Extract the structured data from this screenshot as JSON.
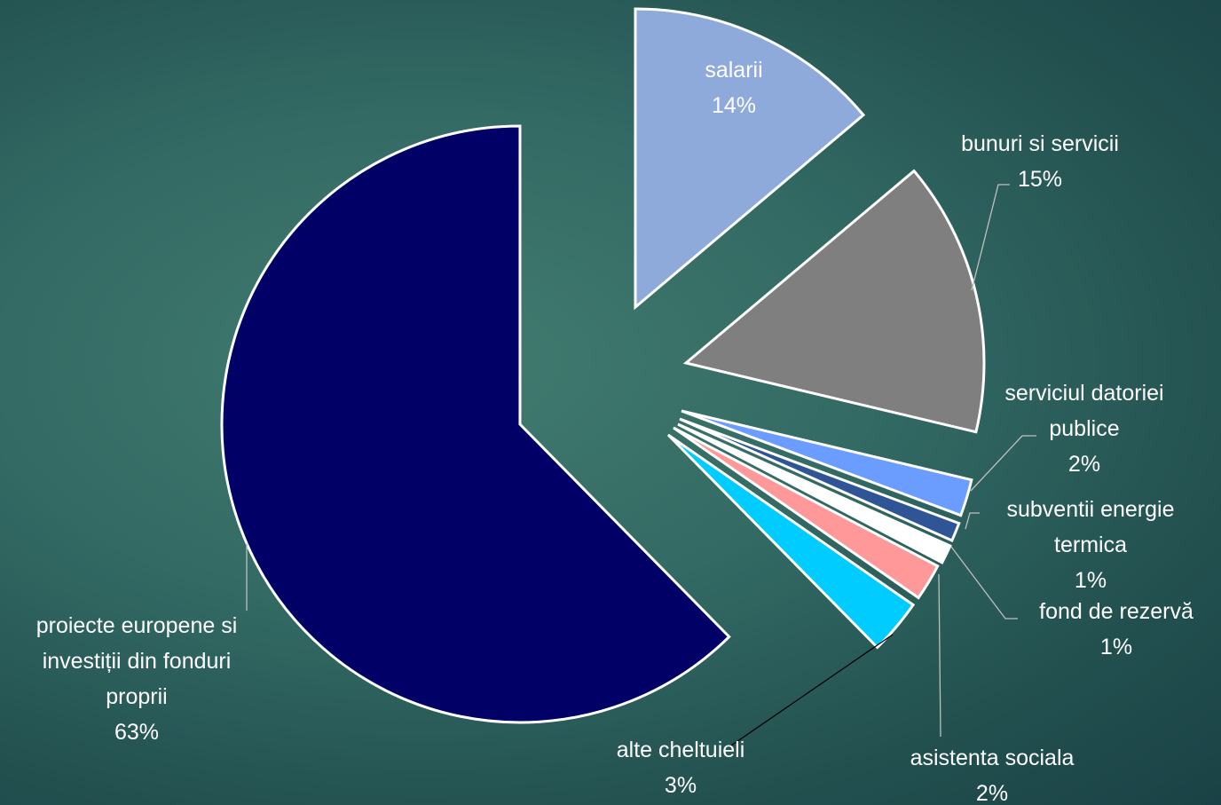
{
  "chart_data": {
    "type": "pie",
    "title": "",
    "slices": [
      {
        "label": "salarii",
        "label_lines": [
          "salarii"
        ],
        "value_label": "14%",
        "value": 14,
        "color": "#8eaadb"
      },
      {
        "label": "bunuri si servicii",
        "label_lines": [
          "bunuri  si servicii"
        ],
        "value_label": "15%",
        "value": 15,
        "color": "#7f7f7f"
      },
      {
        "label": "serviciul datoriei publice",
        "label_lines": [
          "serviciul datoriei",
          "publice"
        ],
        "value_label": "2%",
        "value": 2,
        "color": "#6b9cff"
      },
      {
        "label": "subventii energie termica",
        "label_lines": [
          "subventii  energie",
          "termica"
        ],
        "value_label": "1%",
        "value": 1,
        "color": "#2f5597"
      },
      {
        "label": "fond de rezervă",
        "label_lines": [
          "fond de rezervă"
        ],
        "value_label": "1%",
        "value": 1,
        "color": "#ffffff"
      },
      {
        "label": "asistenta sociala",
        "label_lines": [
          "asistenta sociala"
        ],
        "value_label": "2%",
        "value": 2,
        "color": "#ff9999"
      },
      {
        "label": "alte cheltuieli",
        "label_lines": [
          "alte cheltuieli"
        ],
        "value_label": "3%",
        "value": 3,
        "color": "#00ccff"
      },
      {
        "label": "proiecte europene si investiții din fonduri proprii",
        "label_lines": [
          "proiecte europene si",
          "investiții din fonduri",
          "proprii"
        ],
        "value_label": "63%",
        "value": 63,
        "color": "#000066"
      }
    ],
    "legend": "none",
    "label_color": "#ffffff",
    "leader_color_light": "#bfbfbf",
    "leader_color_dark": "#000000"
  }
}
